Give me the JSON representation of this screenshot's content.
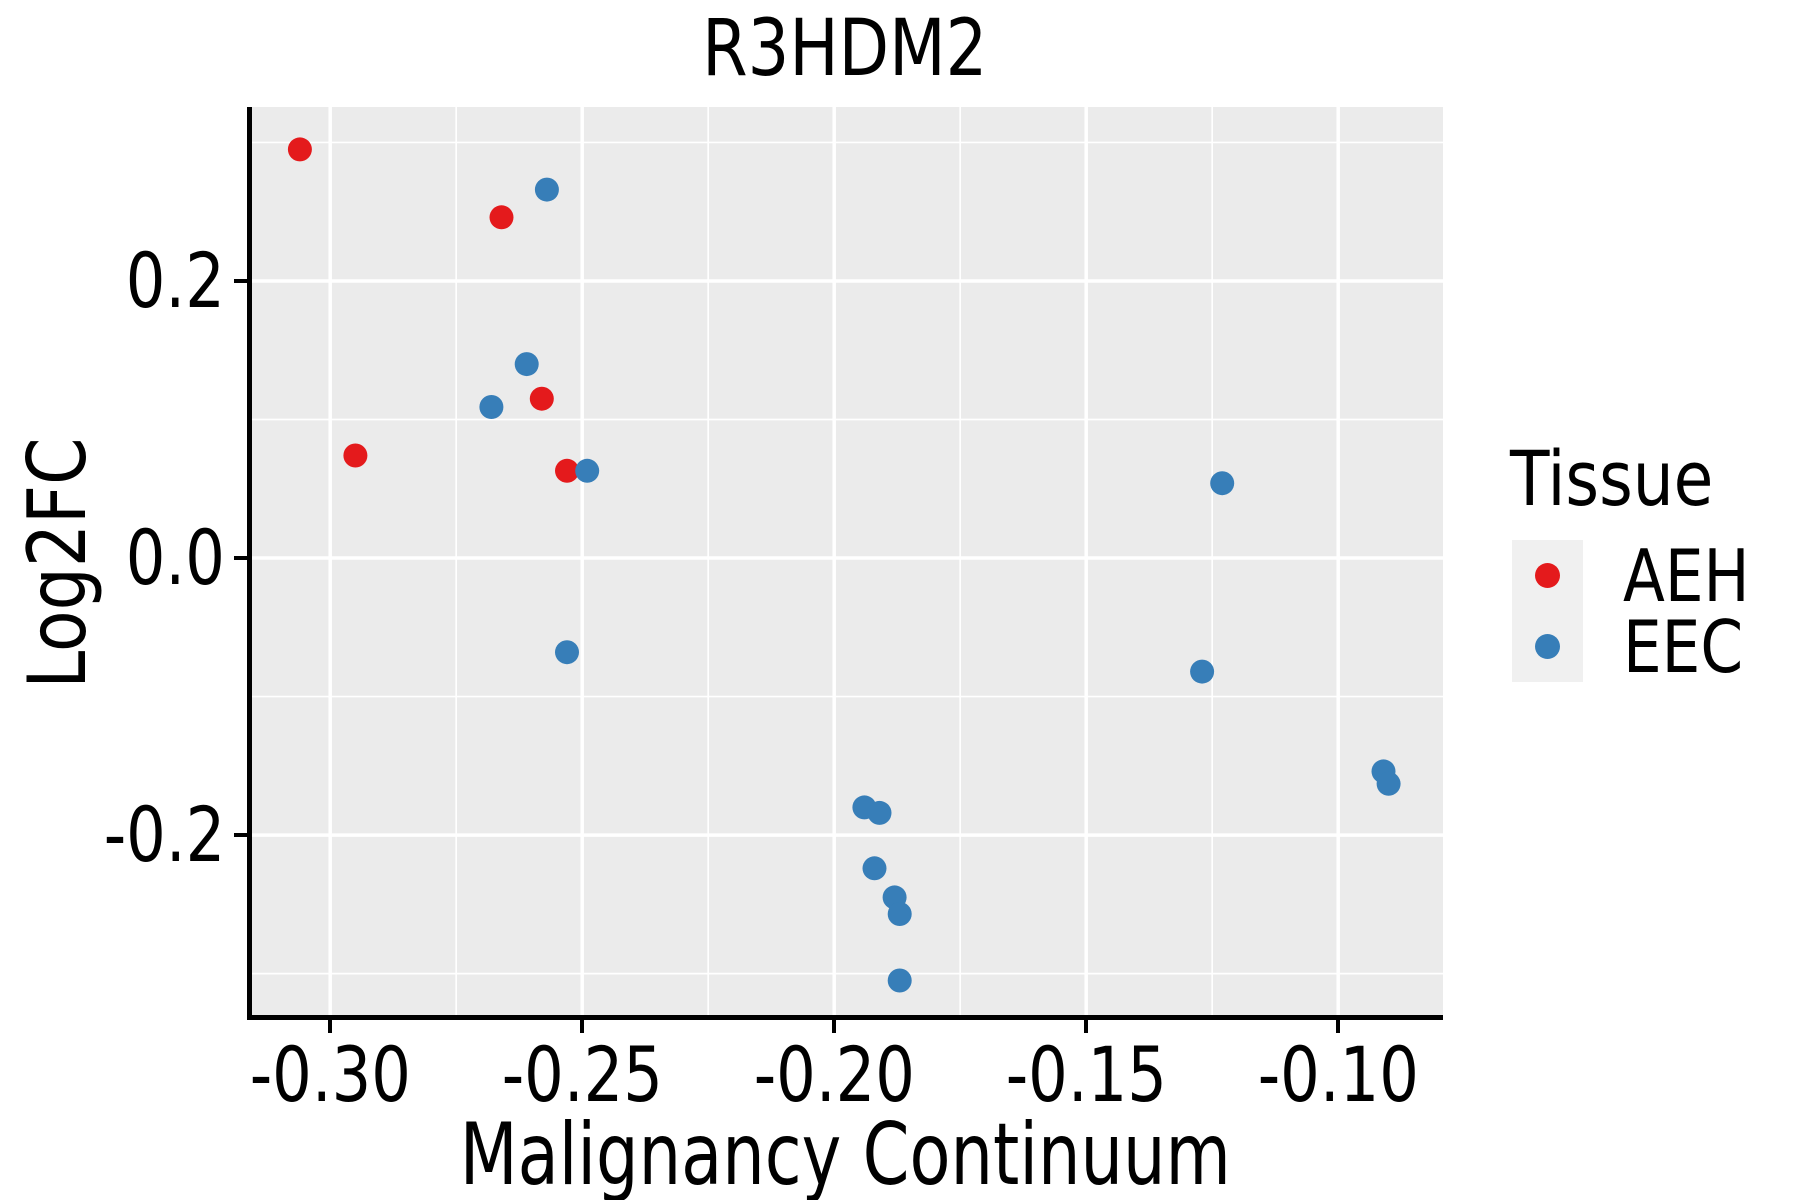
{
  "chart_data": {
    "type": "scatter",
    "title": "R3HDM2",
    "xlabel": "Malignancy Continuum",
    "ylabel": "Log2FC",
    "xlim": [
      -0.3165,
      -0.0792
    ],
    "ylim": [
      -0.3335,
      0.3256
    ],
    "x_major_ticks": [
      -0.3,
      -0.25,
      -0.2,
      -0.15,
      -0.1
    ],
    "x_tick_labels": [
      "-0.30",
      "-0.25",
      "-0.20",
      "-0.15",
      "-0.10"
    ],
    "x_minor_ticks": [
      -0.275,
      -0.225,
      -0.175,
      -0.125
    ],
    "y_major_ticks": [
      0.2,
      0.0,
      -0.2
    ],
    "y_tick_labels": [
      "0.2",
      "0.0",
      "-0.2"
    ],
    "y_minor_ticks": [
      0.3,
      0.1,
      -0.1,
      -0.3
    ],
    "grid": true,
    "legend_position": "right",
    "colors": {
      "panel_background": "#EBEBEB",
      "grid": "#FFFFFF",
      "axis_line": "#000000",
      "text": "#000000",
      "legend_key_background": "#F0F0F0",
      "aeh": "#E41A1C",
      "eec": "#377EB8"
    },
    "legend": {
      "title": "Tissue",
      "entries": [
        {
          "label": "AEH",
          "color": "#E41A1C"
        },
        {
          "label": "EEC",
          "color": "#377EB8"
        }
      ]
    },
    "series": [
      {
        "name": "AEH",
        "color": "#E41A1C",
        "points": [
          [
            -0.306,
            0.295
          ],
          [
            -0.266,
            0.246
          ],
          [
            -0.258,
            0.115
          ],
          [
            -0.295,
            0.074
          ],
          [
            -0.253,
            0.063
          ]
        ]
      },
      {
        "name": "EEC",
        "color": "#377EB8",
        "points": [
          [
            -0.257,
            0.266
          ],
          [
            -0.261,
            0.14
          ],
          [
            -0.268,
            0.109
          ],
          [
            -0.249,
            0.063
          ],
          [
            -0.253,
            -0.068
          ],
          [
            -0.194,
            -0.18
          ],
          [
            -0.191,
            -0.184
          ],
          [
            -0.192,
            -0.224
          ],
          [
            -0.188,
            -0.245
          ],
          [
            -0.187,
            -0.257
          ],
          [
            -0.187,
            -0.305
          ],
          [
            -0.123,
            0.054
          ],
          [
            -0.127,
            -0.082
          ],
          [
            -0.091,
            -0.154
          ],
          [
            -0.09,
            -0.163
          ]
        ]
      }
    ],
    "marker_radius_px": 12
  }
}
